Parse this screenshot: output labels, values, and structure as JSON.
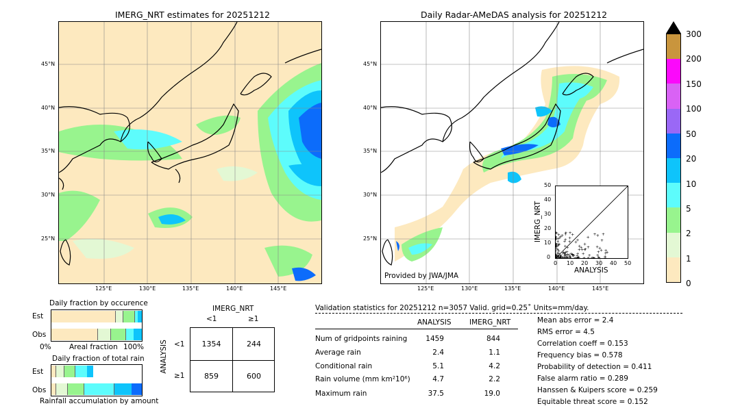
{
  "left_map": {
    "title": "IMERG_NRT estimates for 20251212",
    "lat_labels": [
      "45°N",
      "40°N",
      "35°N",
      "30°N",
      "25°N"
    ],
    "lon_labels": [
      "125°E",
      "130°E",
      "135°E",
      "140°E",
      "145°E"
    ]
  },
  "right_map": {
    "title": "Daily Radar-AMeDAS analysis for 20251212",
    "lat_labels": [
      "45°N",
      "40°N",
      "35°N",
      "30°N",
      "25°N"
    ],
    "lon_labels": [
      "125°E",
      "130°E",
      "135°E",
      "140°E",
      "145°E"
    ],
    "credit": "Provided by JWA/JMA"
  },
  "colorbar": {
    "labels": [
      "0",
      "1",
      "2",
      "5",
      "10",
      "20",
      "50",
      "100",
      "150",
      "200",
      "300"
    ],
    "colors": [
      "#fde9bf",
      "#e3f8d4",
      "#98f48e",
      "#5dfcfc",
      "#0ec4fb",
      "#0c6cfb",
      "#9a68f6",
      "#d962f5",
      "#fb09fb",
      "#c9953d"
    ]
  },
  "scatter": {
    "xlabel": "ANALYSIS",
    "ylabel": "IMERG_NRT",
    "ticks": [
      "0",
      "10",
      "20",
      "30",
      "40",
      "50"
    ]
  },
  "occurrence": {
    "title": "Daily fraction by occurence",
    "row_est": "Est",
    "row_obs": "Obs",
    "axis_left": "0%",
    "axis_mid": "Areal fraction",
    "axis_right": "100%"
  },
  "total_rain": {
    "title": "Daily fraction of total rain",
    "row_est": "Est",
    "row_obs": "Obs",
    "axis_label": "Rainfall accumulation by amount"
  },
  "contingency": {
    "col_header": "IMERG_NRT",
    "col_lt": "<1",
    "col_ge": "≥1",
    "row_header": "ANALYSIS",
    "row_lt": "<1",
    "row_ge": "≥1",
    "a": "1354",
    "b": "244",
    "c": "859",
    "d": "600"
  },
  "validation": {
    "header": "Validation statistics for 20251212  n=3057 Valid. grid=0.25˚ Units=mm/day.",
    "col_analysis": "ANALYSIS",
    "col_imerg": "IMERG_NRT",
    "rows": [
      {
        "label": "Num of gridpoints raining",
        "analysis": "1459",
        "imerg": "844"
      },
      {
        "label": "Average rain",
        "analysis": "2.4",
        "imerg": "1.1"
      },
      {
        "label": "Conditional rain",
        "analysis": "5.1",
        "imerg": "4.2"
      },
      {
        "label": "Rain volume (mm km²10⁶)",
        "analysis": "4.7",
        "imerg": "2.2"
      },
      {
        "label": "Maximum rain",
        "analysis": "37.5",
        "imerg": "19.0"
      }
    ],
    "scores": [
      "Mean abs error =    2.4",
      "RMS error =    4.5",
      "Correlation coeff =  0.153",
      "Frequency bias =  0.578",
      "Probability of detection =  0.411",
      "False alarm ratio =  0.289",
      "Hanssen & Kuipers score =  0.259",
      "Equitable threat score =  0.152"
    ]
  }
}
